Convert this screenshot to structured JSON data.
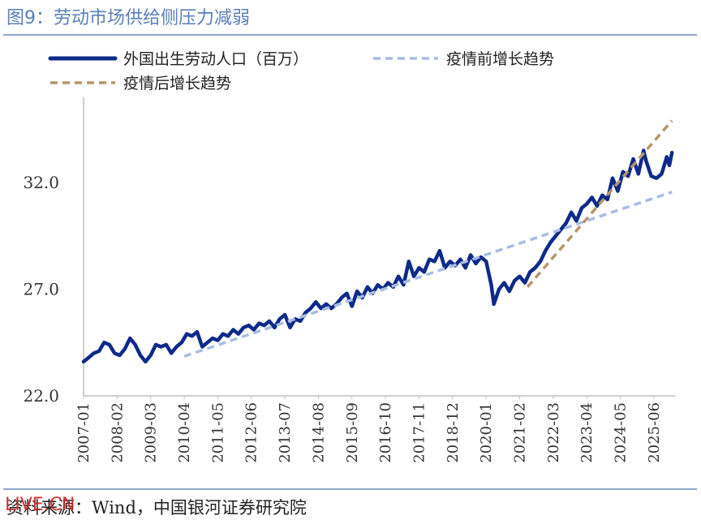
{
  "header": {
    "title": "图9：劳动市场供给侧压力减弱"
  },
  "footer": {
    "source": "资料来源：Wind，中国银河证券研究院",
    "watermark": "LIVE.CN"
  },
  "chart_data": {
    "type": "line",
    "title": "图9：劳动市场供给侧压力减弱",
    "xlabel": "",
    "ylabel": "",
    "ylim": [
      22,
      35.8
    ],
    "yticks": [
      22.0,
      27.0,
      32.0
    ],
    "ytick_labels": [
      "22.0",
      "27.0",
      "32.0"
    ],
    "x_ticks": [
      "2007-01",
      "2008-02",
      "2009-03",
      "2010-04",
      "2011-05",
      "2012-06",
      "2013-07",
      "2014-08",
      "2015-09",
      "2016-10",
      "2017-11",
      "2018-12",
      "2020-01",
      "2021-02",
      "2022-03",
      "2023-04",
      "2024-05",
      "2025-06"
    ],
    "legend_position": "top-left",
    "series": [
      {
        "name": "外国出生劳动人口（百万）",
        "style": "solid",
        "color": "#0f2a8a",
        "points": [
          [
            "2007-01",
            23.6
          ],
          [
            "2007-03",
            23.8
          ],
          [
            "2007-05",
            24.0
          ],
          [
            "2007-07",
            24.1
          ],
          [
            "2007-09",
            24.5
          ],
          [
            "2007-11",
            24.4
          ],
          [
            "2008-01",
            24.0
          ],
          [
            "2008-03",
            23.9
          ],
          [
            "2008-05",
            24.2
          ],
          [
            "2008-07",
            24.7
          ],
          [
            "2008-09",
            24.4
          ],
          [
            "2008-11",
            23.9
          ],
          [
            "2009-01",
            23.6
          ],
          [
            "2009-03",
            23.9
          ],
          [
            "2009-05",
            24.4
          ],
          [
            "2009-07",
            24.3
          ],
          [
            "2009-09",
            24.4
          ],
          [
            "2009-11",
            24.0
          ],
          [
            "2010-01",
            24.3
          ],
          [
            "2010-03",
            24.5
          ],
          [
            "2010-05",
            24.9
          ],
          [
            "2010-07",
            24.8
          ],
          [
            "2010-09",
            25.0
          ],
          [
            "2010-11",
            24.3
          ],
          [
            "2011-01",
            24.5
          ],
          [
            "2011-03",
            24.7
          ],
          [
            "2011-05",
            24.6
          ],
          [
            "2011-07",
            24.9
          ],
          [
            "2011-09",
            24.8
          ],
          [
            "2011-11",
            25.1
          ],
          [
            "2012-01",
            24.9
          ],
          [
            "2012-03",
            25.2
          ],
          [
            "2012-05",
            25.3
          ],
          [
            "2012-07",
            25.1
          ],
          [
            "2012-09",
            25.4
          ],
          [
            "2012-11",
            25.3
          ],
          [
            "2013-01",
            25.5
          ],
          [
            "2013-03",
            25.2
          ],
          [
            "2013-05",
            25.6
          ],
          [
            "2013-07",
            25.8
          ],
          [
            "2013-09",
            25.2
          ],
          [
            "2013-11",
            25.6
          ],
          [
            "2014-01",
            25.5
          ],
          [
            "2014-03",
            25.9
          ],
          [
            "2014-05",
            26.1
          ],
          [
            "2014-07",
            26.4
          ],
          [
            "2014-09",
            26.1
          ],
          [
            "2014-11",
            26.3
          ],
          [
            "2015-01",
            26.1
          ],
          [
            "2015-03",
            26.3
          ],
          [
            "2015-05",
            26.6
          ],
          [
            "2015-07",
            26.8
          ],
          [
            "2015-09",
            26.2
          ],
          [
            "2015-11",
            26.9
          ],
          [
            "2016-01",
            26.6
          ],
          [
            "2016-03",
            27.1
          ],
          [
            "2016-05",
            26.8
          ],
          [
            "2016-07",
            27.2
          ],
          [
            "2016-09",
            27.0
          ],
          [
            "2016-11",
            27.3
          ],
          [
            "2017-01",
            27.1
          ],
          [
            "2017-03",
            27.6
          ],
          [
            "2017-05",
            27.2
          ],
          [
            "2017-07",
            28.3
          ],
          [
            "2017-09",
            27.6
          ],
          [
            "2017-11",
            28.0
          ],
          [
            "2018-01",
            27.8
          ],
          [
            "2018-03",
            28.4
          ],
          [
            "2018-05",
            28.3
          ],
          [
            "2018-07",
            28.8
          ],
          [
            "2018-09",
            28.0
          ],
          [
            "2018-11",
            28.3
          ],
          [
            "2019-01",
            28.1
          ],
          [
            "2019-03",
            28.4
          ],
          [
            "2019-05",
            28.0
          ],
          [
            "2019-07",
            28.6
          ],
          [
            "2019-09",
            28.2
          ],
          [
            "2019-11",
            28.5
          ],
          [
            "2020-01",
            28.3
          ],
          [
            "2020-03",
            27.2
          ],
          [
            "2020-04",
            26.3
          ],
          [
            "2020-06",
            27.0
          ],
          [
            "2020-08",
            27.3
          ],
          [
            "2020-10",
            26.9
          ],
          [
            "2020-12",
            27.4
          ],
          [
            "2021-02",
            27.6
          ],
          [
            "2021-04",
            27.3
          ],
          [
            "2021-06",
            27.8
          ],
          [
            "2021-08",
            28.0
          ],
          [
            "2021-10",
            28.3
          ],
          [
            "2021-12",
            28.8
          ],
          [
            "2022-02",
            29.2
          ],
          [
            "2022-04",
            29.5
          ],
          [
            "2022-06",
            29.8
          ],
          [
            "2022-08",
            30.1
          ],
          [
            "2022-10",
            30.6
          ],
          [
            "2022-12",
            30.2
          ],
          [
            "2023-02",
            30.8
          ],
          [
            "2023-04",
            31.0
          ],
          [
            "2023-06",
            31.3
          ],
          [
            "2023-08",
            30.9
          ],
          [
            "2023-10",
            31.4
          ],
          [
            "2023-12",
            31.2
          ],
          [
            "2024-02",
            32.2
          ],
          [
            "2024-04",
            31.6
          ],
          [
            "2024-06",
            32.5
          ],
          [
            "2024-08",
            32.3
          ],
          [
            "2024-10",
            33.1
          ],
          [
            "2024-12",
            32.4
          ],
          [
            "2025-02",
            33.5
          ],
          [
            "2025-03",
            33.0
          ],
          [
            "2025-05",
            32.3
          ],
          [
            "2025-07",
            32.2
          ],
          [
            "2025-09",
            32.4
          ],
          [
            "2025-11",
            33.2
          ],
          [
            "2025-12",
            32.8
          ],
          [
            "2026-01",
            33.4
          ]
        ]
      },
      {
        "name": "疫情前增长趋势",
        "style": "dashed",
        "color": "#a9bde3",
        "points": [
          [
            "2010-04",
            23.85
          ],
          [
            "2026-01",
            31.55
          ]
        ]
      },
      {
        "name": "疫情后增长趋势",
        "style": "dashed",
        "color": "#b5976b",
        "points": [
          [
            "2021-05",
            27.1
          ],
          [
            "2026-01",
            34.9
          ]
        ]
      }
    ]
  }
}
